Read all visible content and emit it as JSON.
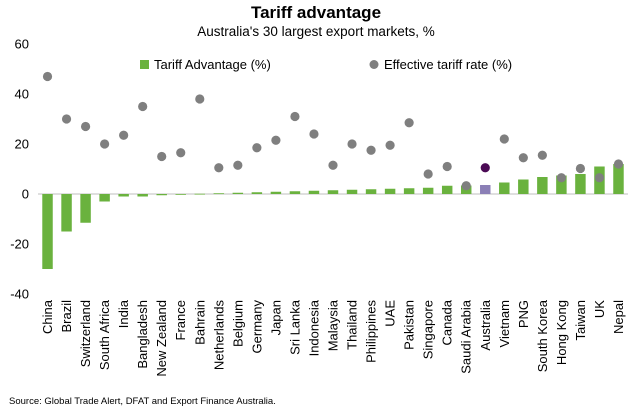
{
  "chart_data": {
    "type": "bar",
    "title": "Tariff advantage",
    "subtitle": "Australia's 30 largest export markets, %",
    "source": "Source: Global Trade Alert, DFAT and Export Finance Australia.",
    "xlabel": "",
    "ylabel": "",
    "ylim": [
      -40,
      60
    ],
    "yticks": [
      "60",
      "40",
      "20",
      "0",
      "-20",
      "-40"
    ],
    "grid": false,
    "legend_position": "top",
    "categories": [
      "China",
      "Brazil",
      "Switzerland",
      "South Africa",
      "India",
      "Bangladesh",
      "New Zealand",
      "France",
      "Bahrain",
      "Netherlands",
      "Belgium",
      "Germany",
      "Japan",
      "Sri Lanka",
      "Indonesia",
      "Malaysia",
      "Thailand",
      "Philippines",
      "UAE",
      "Pakistan",
      "Singapore",
      "Canada",
      "Saudi Arabia",
      "Australia",
      "Vietnam",
      "PNG",
      "South Korea",
      "Hong Kong",
      "Taiwan",
      "UK",
      "Nepal"
    ],
    "highlight_category": "Australia",
    "series": [
      {
        "name": "Tariff Advantage (%)",
        "kind": "bar",
        "color": "#6ab23e",
        "highlight_color": "#8b7fb6",
        "values": [
          -30,
          -15,
          -11.5,
          -3,
          -1,
          -1,
          -0.5,
          -0.3,
          0.1,
          0.3,
          0.5,
          0.7,
          0.9,
          1.1,
          1.3,
          1.5,
          1.7,
          1.9,
          2.1,
          2.3,
          2.5,
          3.3,
          3.4,
          3.6,
          4.6,
          5.8,
          6.8,
          7.4,
          8,
          11,
          12
        ]
      },
      {
        "name": "Effective tariff rate (%)",
        "kind": "dot",
        "color": "#7f7f7f",
        "highlight_color": "#4b0a55",
        "values": [
          47,
          30,
          27,
          20,
          23.5,
          35,
          15,
          16.5,
          38,
          10.5,
          11.5,
          18.5,
          21.5,
          31,
          24,
          11.5,
          20,
          17.5,
          19.5,
          28.5,
          8,
          11,
          3.3,
          10.5,
          22,
          14.5,
          15.5,
          6.5,
          10.2,
          6.5,
          12
        ]
      }
    ]
  }
}
